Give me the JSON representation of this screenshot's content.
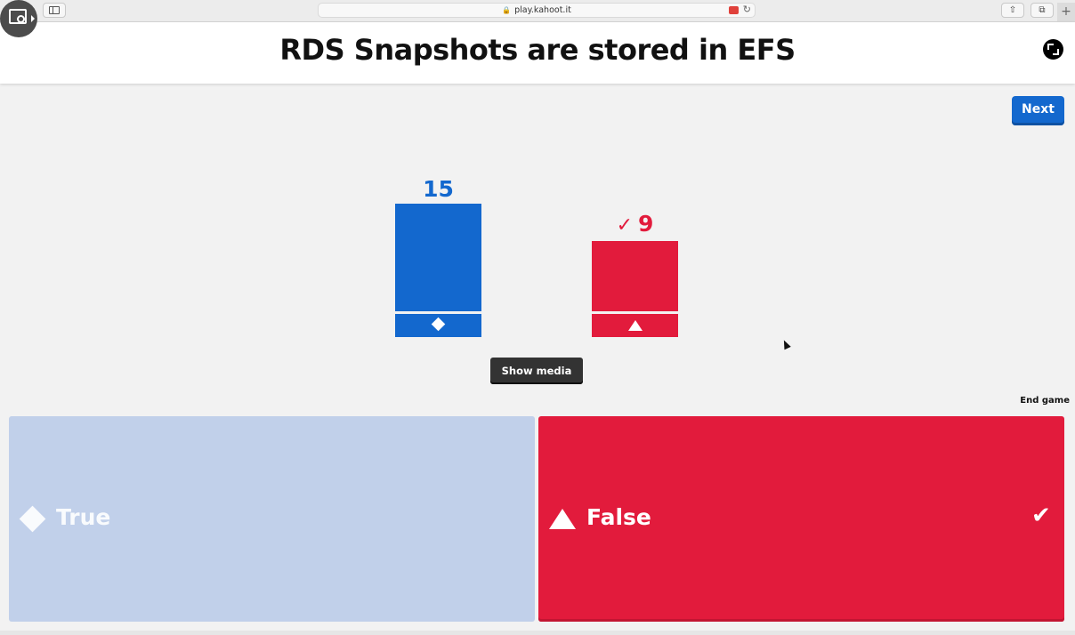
{
  "browser": {
    "url": "play.kahoot.it"
  },
  "question": {
    "title": "RDS Snapshots are stored in EFS"
  },
  "controls": {
    "next_label": "Next",
    "show_media_label": "Show media",
    "end_game_label": "End game"
  },
  "colors": {
    "blue": "#1368ce",
    "red": "#e21b3c",
    "true_tile_faded": "#c1d0ea"
  },
  "results": [
    {
      "answer": "True",
      "count": "15",
      "correct": false,
      "shape": "diamond-icon",
      "color": "#1368ce"
    },
    {
      "answer": "False",
      "count": "9",
      "correct": true,
      "shape": "triangle-icon",
      "color": "#e21b3c"
    }
  ],
  "answers": {
    "true_label": "True",
    "false_label": "False"
  }
}
